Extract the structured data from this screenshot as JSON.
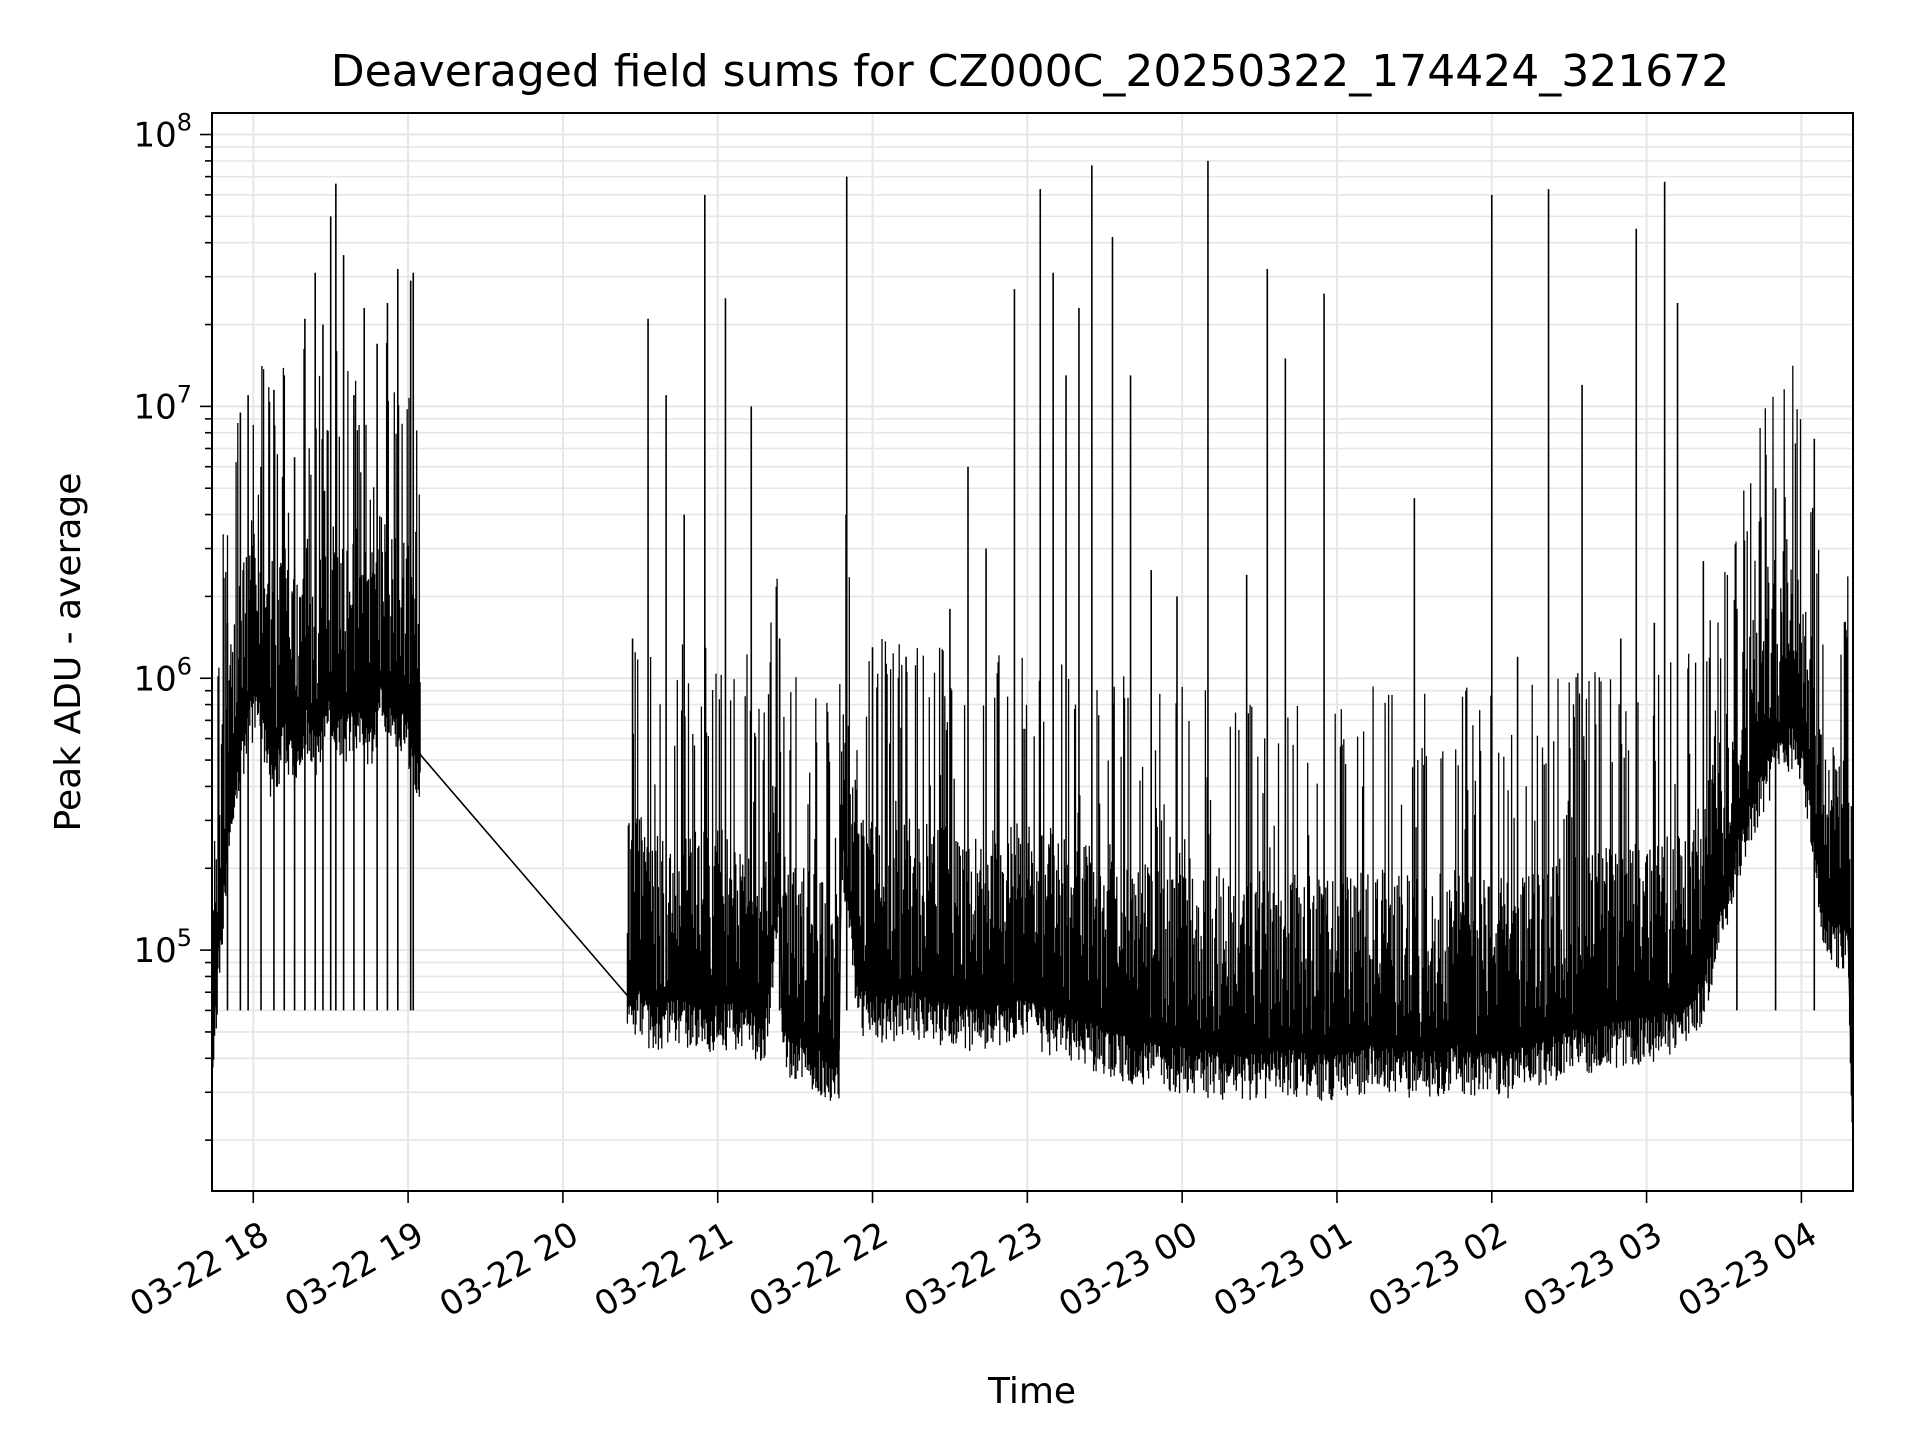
{
  "chart_data": {
    "type": "line",
    "title": "Deaveraged field sums for CZ000C_20250322_174424_321672",
    "xlabel": "Time",
    "ylabel": "Peak ADU - average",
    "yscale": "log",
    "ylim": [
      13000,
      120000000
    ],
    "xlim": [
      "2025-03-22 17:44",
      "2025-03-23 04:20"
    ],
    "grid": true,
    "line_color": "#000000",
    "grid_color": "#e6e6e6",
    "x_ticks": [
      {
        "at": "2025-03-22 18:00",
        "label": "03-22 18"
      },
      {
        "at": "2025-03-22 19:00",
        "label": "03-22 19"
      },
      {
        "at": "2025-03-22 20:00",
        "label": "03-22 20"
      },
      {
        "at": "2025-03-22 21:00",
        "label": "03-22 21"
      },
      {
        "at": "2025-03-22 22:00",
        "label": "03-22 22"
      },
      {
        "at": "2025-03-22 23:00",
        "label": "03-22 23"
      },
      {
        "at": "2025-03-23 00:00",
        "label": "03-23 00"
      },
      {
        "at": "2025-03-23 01:00",
        "label": "03-23 01"
      },
      {
        "at": "2025-03-23 02:00",
        "label": "03-23 02"
      },
      {
        "at": "2025-03-23 03:00",
        "label": "03-23 03"
      },
      {
        "at": "2025-03-23 04:00",
        "label": "03-23 04"
      }
    ],
    "y_ticks": [
      {
        "value": 100000,
        "base": "10",
        "exp": "5"
      },
      {
        "value": 1000000,
        "base": "10",
        "exp": "6"
      },
      {
        "value": 10000000,
        "base": "10",
        "exp": "7"
      },
      {
        "value": 100000000,
        "base": "10",
        "exp": "8"
      }
    ],
    "series": [
      {
        "points": [
          [
            "2025-03-22 17:44",
            42000
          ],
          [
            "2025-03-22 17:47",
            130000
          ],
          [
            "2025-03-22 17:50",
            300000
          ],
          [
            "2025-03-22 17:53",
            450000
          ],
          [
            "2025-03-22 17:56",
            700000
          ],
          [
            "2025-03-22 17:59",
            950000
          ],
          [
            "2025-03-22 18:02",
            1000000
          ],
          [
            "2025-03-22 18:05",
            700000
          ],
          [
            "2025-03-22 18:08",
            500000
          ],
          [
            "2025-03-22 18:12",
            800000
          ],
          [
            "2025-03-22 18:16",
            600000
          ],
          [
            "2025-03-22 18:20",
            900000
          ],
          [
            "2025-03-22 18:25",
            700000
          ],
          [
            "2025-03-22 18:30",
            1000000
          ],
          [
            "2025-03-22 18:35",
            800000
          ],
          [
            "2025-03-22 18:40",
            900000
          ],
          [
            "2025-03-22 18:45",
            700000
          ],
          [
            "2025-03-22 18:50",
            1100000
          ],
          [
            "2025-03-22 18:55",
            900000
          ],
          [
            "2025-03-22 19:00",
            800000
          ],
          [
            "2025-03-22 19:02",
            600000
          ],
          [
            "2025-03-22 19:05",
            520000
          ],
          [
            "2025-03-22 20:25",
            68000
          ],
          [
            "2025-03-22 20:26",
            85000
          ],
          [
            "2025-03-22 20:35",
            70000
          ],
          [
            "2025-03-22 20:45",
            75000
          ],
          [
            "2025-03-22 20:55",
            68000
          ],
          [
            "2025-03-22 21:05",
            72000
          ],
          [
            "2025-03-22 21:15",
            65000
          ],
          [
            "2025-03-22 21:18",
            55000
          ],
          [
            "2025-03-22 21:24",
            220000
          ],
          [
            "2025-03-22 21:25",
            58000
          ],
          [
            "2025-03-22 21:47",
            43000
          ],
          [
            "2025-03-22 21:48",
            300000
          ],
          [
            "2025-03-22 21:55",
            80000
          ],
          [
            "2025-03-22 22:05",
            75000
          ],
          [
            "2025-03-22 22:15",
            80000
          ],
          [
            "2025-03-22 22:25",
            72000
          ],
          [
            "2025-03-22 22:35",
            70000
          ],
          [
            "2025-03-22 22:45",
            68000
          ],
          [
            "2025-03-22 22:55",
            75000
          ],
          [
            "2025-03-22 23:05",
            70000
          ],
          [
            "2025-03-22 23:15",
            65000
          ],
          [
            "2025-03-22 23:25",
            60000
          ],
          [
            "2025-03-22 23:35",
            55000
          ],
          [
            "2025-03-22 23:45",
            52000
          ],
          [
            "2025-03-22 23:55",
            50000
          ],
          [
            "2025-03-23 00:05",
            48000
          ],
          [
            "2025-03-23 00:15",
            47000
          ],
          [
            "2025-03-23 00:25",
            46000
          ],
          [
            "2025-03-23 00:35",
            47000
          ],
          [
            "2025-03-23 00:45",
            48000
          ],
          [
            "2025-03-23 00:55",
            46000
          ],
          [
            "2025-03-23 01:05",
            48000
          ],
          [
            "2025-03-23 01:15",
            50000
          ],
          [
            "2025-03-23 01:25",
            48000
          ],
          [
            "2025-03-23 01:35",
            47000
          ],
          [
            "2025-03-23 01:45",
            50000
          ],
          [
            "2025-03-23 01:55",
            48000
          ],
          [
            "2025-03-23 02:05",
            47000
          ],
          [
            "2025-03-23 02:15",
            50000
          ],
          [
            "2025-03-23 02:25",
            55000
          ],
          [
            "2025-03-23 02:35",
            58000
          ],
          [
            "2025-03-23 02:45",
            60000
          ],
          [
            "2025-03-23 02:55",
            62000
          ],
          [
            "2025-03-23 03:05",
            65000
          ],
          [
            "2025-03-23 03:15",
            70000
          ],
          [
            "2025-03-23 03:22",
            90000
          ],
          [
            "2025-03-23 03:28",
            150000
          ],
          [
            "2025-03-23 03:34",
            250000
          ],
          [
            "2025-03-23 03:40",
            400000
          ],
          [
            "2025-03-23 03:46",
            550000
          ],
          [
            "2025-03-23 03:52",
            700000
          ],
          [
            "2025-03-23 03:58",
            780000
          ],
          [
            "2025-03-23 04:01",
            600000
          ],
          [
            "2025-03-23 04:05",
            300000
          ],
          [
            "2025-03-23 04:09",
            150000
          ],
          [
            "2025-03-23 04:14",
            140000
          ],
          [
            "2025-03-23 04:18",
            130000
          ],
          [
            "2025-03-23 04:20",
            22000
          ]
        ],
        "spikes": [
          [
            "2025-03-22 17:50",
            1600000
          ],
          [
            "2025-03-22 17:55",
            9500000
          ],
          [
            "2025-03-22 17:58",
            11000000
          ],
          [
            "2025-03-22 18:03",
            6000000
          ],
          [
            "2025-03-22 18:08",
            11500000
          ],
          [
            "2025-03-22 18:12",
            13000000
          ],
          [
            "2025-03-22 18:16",
            6500000
          ],
          [
            "2025-03-22 18:20",
            21000000
          ],
          [
            "2025-03-22 18:24",
            31000000
          ],
          [
            "2025-03-22 18:27",
            20000000
          ],
          [
            "2025-03-22 18:30",
            50000000
          ],
          [
            "2025-03-22 18:32",
            66000000
          ],
          [
            "2025-03-22 18:35",
            36000000
          ],
          [
            "2025-03-22 18:39",
            11000000
          ],
          [
            "2025-03-22 18:43",
            23000000
          ],
          [
            "2025-03-22 18:48",
            17000000
          ],
          [
            "2025-03-22 18:52",
            24000000
          ],
          [
            "2025-03-22 18:56",
            32000000
          ],
          [
            "2025-03-22 19:01",
            29000000
          ],
          [
            "2025-03-22 19:02",
            31000000
          ],
          [
            "2025-03-22 20:27",
            1400000
          ],
          [
            "2025-03-22 20:33",
            21000000
          ],
          [
            "2025-03-22 20:40",
            11000000
          ],
          [
            "2025-03-22 20:47",
            4000000
          ],
          [
            "2025-03-22 20:55",
            60000000
          ],
          [
            "2025-03-22 21:03",
            25000000
          ],
          [
            "2025-03-22 21:13",
            10000000
          ],
          [
            "2025-03-22 21:24",
            1400000
          ],
          [
            "2025-03-22 21:50",
            70000000
          ],
          [
            "2025-03-22 22:00",
            1300000
          ],
          [
            "2025-03-22 22:13",
            1200000
          ],
          [
            "2025-03-22 22:30",
            1800000
          ],
          [
            "2025-03-22 22:37",
            6000000
          ],
          [
            "2025-03-22 22:44",
            3000000
          ],
          [
            "2025-03-22 22:55",
            27000000
          ],
          [
            "2025-03-22 23:05",
            63000000
          ],
          [
            "2025-03-22 23:10",
            31000000
          ],
          [
            "2025-03-22 23:15",
            13000000
          ],
          [
            "2025-03-22 23:20",
            23000000
          ],
          [
            "2025-03-22 23:25",
            77000000
          ],
          [
            "2025-03-22 23:33",
            42000000
          ],
          [
            "2025-03-22 23:40",
            13000000
          ],
          [
            "2025-03-22 23:48",
            2500000
          ],
          [
            "2025-03-22 23:58",
            2000000
          ],
          [
            "2025-03-23 00:10",
            80000000
          ],
          [
            "2025-03-23 00:25",
            2400000
          ],
          [
            "2025-03-23 00:33",
            32000000
          ],
          [
            "2025-03-23 00:40",
            15000000
          ],
          [
            "2025-03-23 00:55",
            26000000
          ],
          [
            "2025-03-23 01:10",
            400000
          ],
          [
            "2025-03-23 01:30",
            4600000
          ],
          [
            "2025-03-23 01:50",
            900000
          ],
          [
            "2025-03-23 02:00",
            60000000
          ],
          [
            "2025-03-23 02:10",
            1200000
          ],
          [
            "2025-03-23 02:22",
            63000000
          ],
          [
            "2025-03-23 02:35",
            12000000
          ],
          [
            "2025-03-23 02:50",
            1400000
          ],
          [
            "2025-03-23 02:56",
            45000000
          ],
          [
            "2025-03-23 03:03",
            1600000
          ],
          [
            "2025-03-23 03:07",
            67000000
          ],
          [
            "2025-03-23 03:12",
            24000000
          ],
          [
            "2025-03-23 03:22",
            2700000
          ],
          [
            "2025-03-23 03:35",
            1800000
          ],
          [
            "2025-03-23 03:50",
            5000000
          ],
          [
            "2025-03-23 04:05",
            7600000
          ]
        ]
      }
    ]
  }
}
